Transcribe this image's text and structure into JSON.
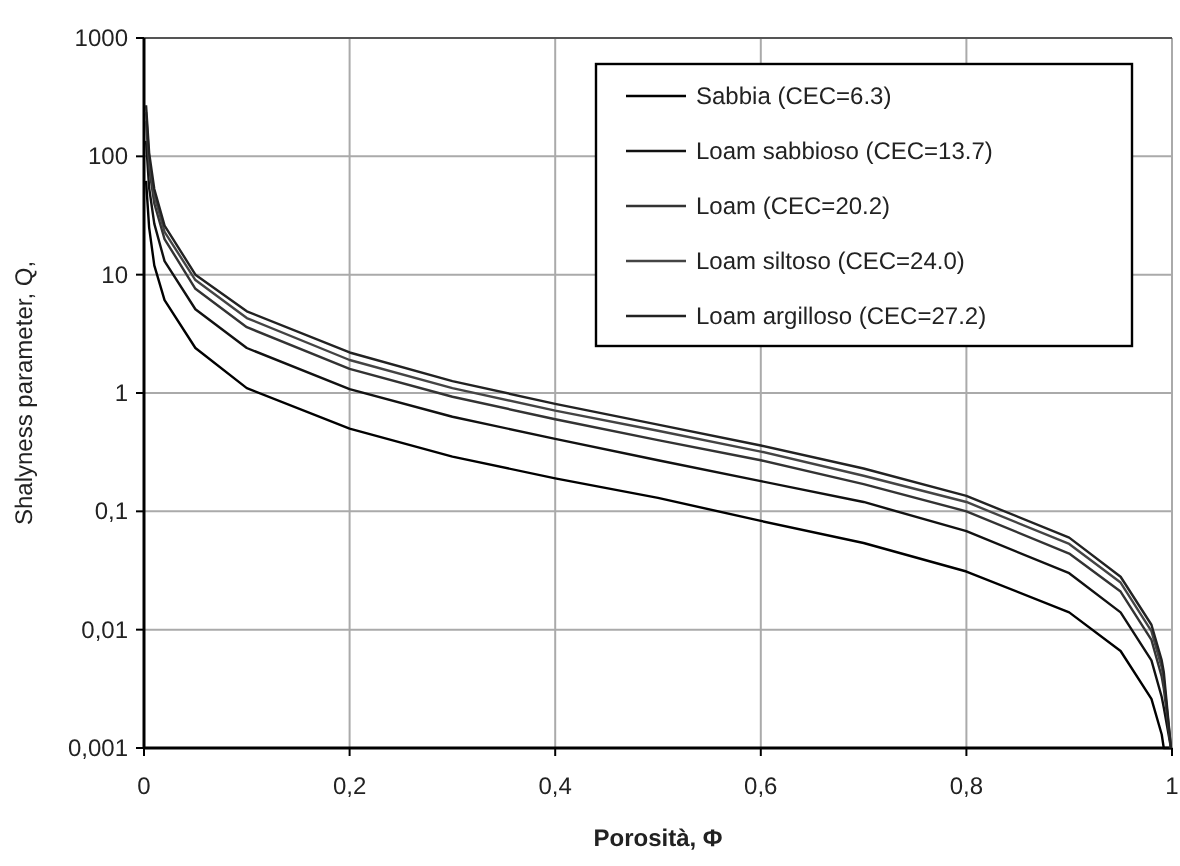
{
  "chart_data": {
    "type": "line",
    "xlabel": "Porosità, Φ",
    "ylabel": "Shalyness parameter, Q,",
    "log": "y",
    "grid": true,
    "legend": "top right",
    "marker": "none",
    "line_style": "solid",
    "xlim": [
      0,
      1
    ],
    "xticks": [
      0,
      {
        "value": 0.2,
        "label": "0,2"
      },
      {
        "value": 0.4,
        "label": "0,4"
      },
      {
        "value": 0.6,
        "label": "0,6"
      },
      {
        "value": 0.8,
        "label": "0,8"
      },
      1
    ],
    "ylim": [
      0.001,
      1000
    ],
    "yticks": [
      {
        "value": 0.001,
        "label": "0,001"
      },
      {
        "value": 0.01,
        "label": "0,01"
      },
      {
        "value": 0.1,
        "label": "0,1"
      },
      1,
      10,
      100,
      1000
    ],
    "x": [
      0.002,
      0.005,
      0.01,
      0.02,
      0.05,
      0.1,
      0.2,
      0.3,
      0.4,
      0.5,
      0.6,
      0.7,
      0.8,
      0.9,
      0.95,
      0.98,
      0.99,
      0.992,
      0.999
    ],
    "series": [
      {
        "name": "Sabbia (CEC=6.3)",
        "color": "#000000",
        "values": [
          62,
          25,
          12,
          6.1,
          2.4,
          1.1,
          0.5,
          0.29,
          0.19,
          0.13,
          0.083,
          0.054,
          0.031,
          0.014,
          0.0066,
          0.0026,
          0.0013,
          0.001,
          0.001
        ]
      },
      {
        "name": "Loam sabbioso (CEC=13.7)",
        "color": "#111111",
        "values": [
          135,
          54,
          27,
          13,
          5.1,
          2.4,
          1.08,
          0.63,
          0.41,
          0.27,
          0.18,
          0.12,
          0.068,
          0.03,
          0.014,
          0.0055,
          0.0027,
          0.0022,
          0.001
        ]
      },
      {
        "name": "Loam (CEC=20.2)",
        "color": "#333333",
        "values": [
          200,
          80,
          40,
          20,
          7.6,
          3.6,
          1.6,
          0.93,
          0.6,
          0.4,
          0.27,
          0.17,
          0.1,
          0.044,
          0.021,
          0.0082,
          0.004,
          0.0032,
          0.001
        ]
      },
      {
        "name": "Loam siltoso (CEC=24.0)",
        "color": "#444444",
        "values": [
          237,
          95,
          47,
          23,
          9,
          4.3,
          1.9,
          1.1,
          0.71,
          0.48,
          0.32,
          0.2,
          0.12,
          0.053,
          0.025,
          0.0097,
          0.0048,
          0.0038,
          0.001
        ]
      },
      {
        "name": "Loam argilloso (CEC=27.2)",
        "color": "#222222",
        "values": [
          270,
          107,
          53,
          26,
          10,
          4.9,
          2.2,
          1.26,
          0.81,
          0.54,
          0.36,
          0.23,
          0.135,
          0.06,
          0.028,
          0.011,
          0.0055,
          0.0044,
          0.001
        ]
      }
    ]
  }
}
